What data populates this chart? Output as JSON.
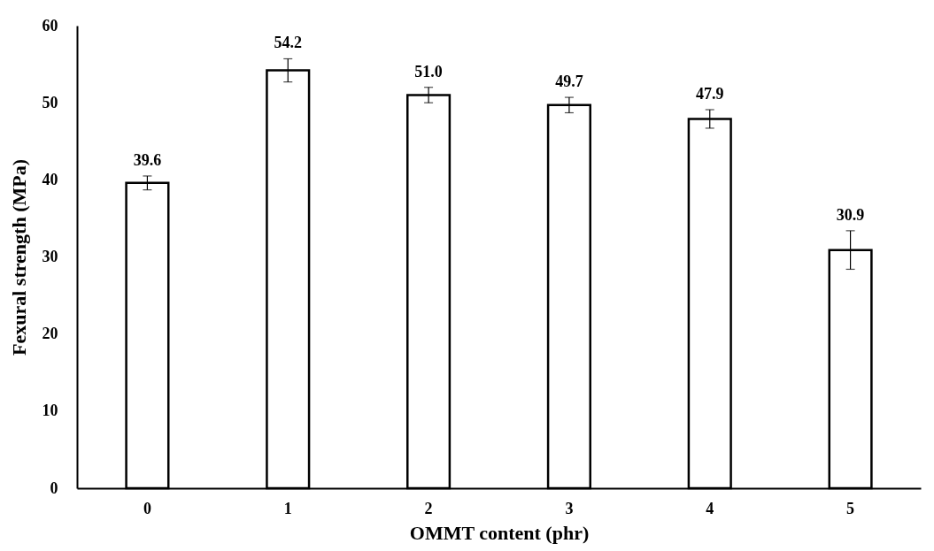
{
  "chart_data": {
    "type": "bar",
    "xlabel": "OMMT content (phr)",
    "ylabel": "Fexural strength (MPa)",
    "categories": [
      "0",
      "1",
      "2",
      "3",
      "4",
      "5"
    ],
    "values": [
      39.6,
      54.2,
      51.0,
      49.7,
      47.9,
      30.9
    ],
    "value_labels": [
      "39.6",
      "54.2",
      "51.0",
      "49.7",
      "47.9",
      "30.9"
    ],
    "errors": [
      0.9,
      1.5,
      1.0,
      1.0,
      1.2,
      2.5
    ],
    "color": "#ffffff",
    "ylim": [
      0,
      60
    ],
    "yticks": [
      0,
      10,
      20,
      30,
      40,
      50,
      60
    ],
    "grid": false
  }
}
